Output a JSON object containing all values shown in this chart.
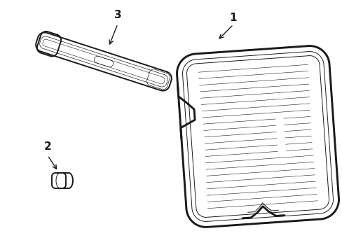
{
  "background_color": "#ffffff",
  "line_color": "#1a1a1a",
  "lw_main": 1.4,
  "lw_thin": 0.7,
  "lw_xtra": 0.4,
  "label_1": "1",
  "label_2": "2",
  "label_3": "3"
}
